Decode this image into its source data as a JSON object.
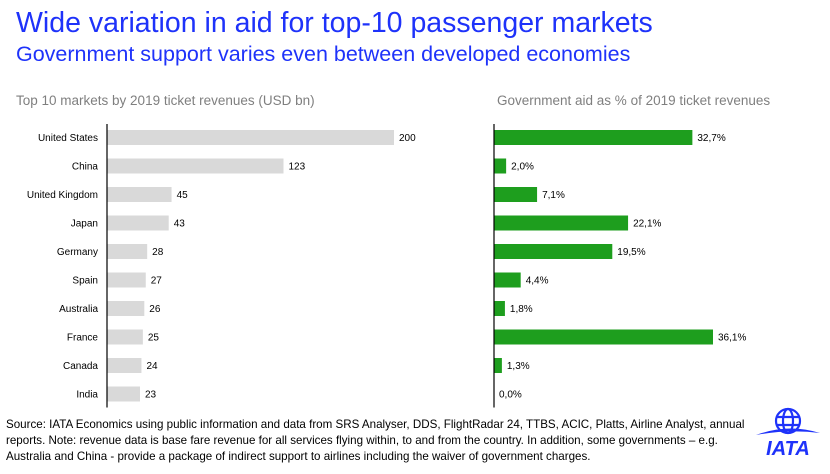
{
  "header": {
    "title": "Wide variation in aid for top-10 passenger markets",
    "subtitle": "Government support varies even between developed economies"
  },
  "chart_data": [
    {
      "type": "bar",
      "orientation": "horizontal",
      "title": "Top 10 markets by 2019 ticket revenues (USD bn)",
      "categories": [
        "United States",
        "China",
        "United Kingdom",
        "Japan",
        "Germany",
        "Spain",
        "Australia",
        "France",
        "Canada",
        "India"
      ],
      "values": [
        200,
        123,
        45,
        43,
        28,
        27,
        26,
        25,
        24,
        23
      ],
      "value_labels": [
        "200",
        "123",
        "45",
        "43",
        "28",
        "27",
        "26",
        "25",
        "24",
        "23"
      ],
      "xlim": [
        0,
        200
      ],
      "color": "#d9d9d9"
    },
    {
      "type": "bar",
      "orientation": "horizontal",
      "title": "Government aid as % of 2019 ticket revenues",
      "categories": [
        "United States",
        "China",
        "United Kingdom",
        "Japan",
        "Germany",
        "Spain",
        "Australia",
        "France",
        "Canada",
        "India"
      ],
      "values": [
        32.7,
        2.0,
        7.1,
        22.1,
        19.5,
        4.4,
        1.8,
        36.1,
        1.3,
        0.0
      ],
      "value_labels": [
        "32,7%",
        "2,0%",
        "7,1%",
        "22,1%",
        "19,5%",
        "4,4%",
        "1,8%",
        "36,1%",
        "1,3%",
        "0,0%"
      ],
      "xlim": [
        0,
        36.1
      ],
      "color": "#1e9e1e"
    }
  ],
  "footer": {
    "source": "Source: IATA Economics using public information and data from SRS Analyser, DDS, FlightRadar 24, TTBS, ACIC, Platts, Airline Analyst, annual reports. Note: revenue data is base fare revenue for all services flying within, to and from the country. In addition, some governments – e.g. Australia and China - provide a package of indirect support to airlines including the waiver of government charges."
  },
  "logo": {
    "text": "IATA",
    "color": "#1e32fa"
  }
}
